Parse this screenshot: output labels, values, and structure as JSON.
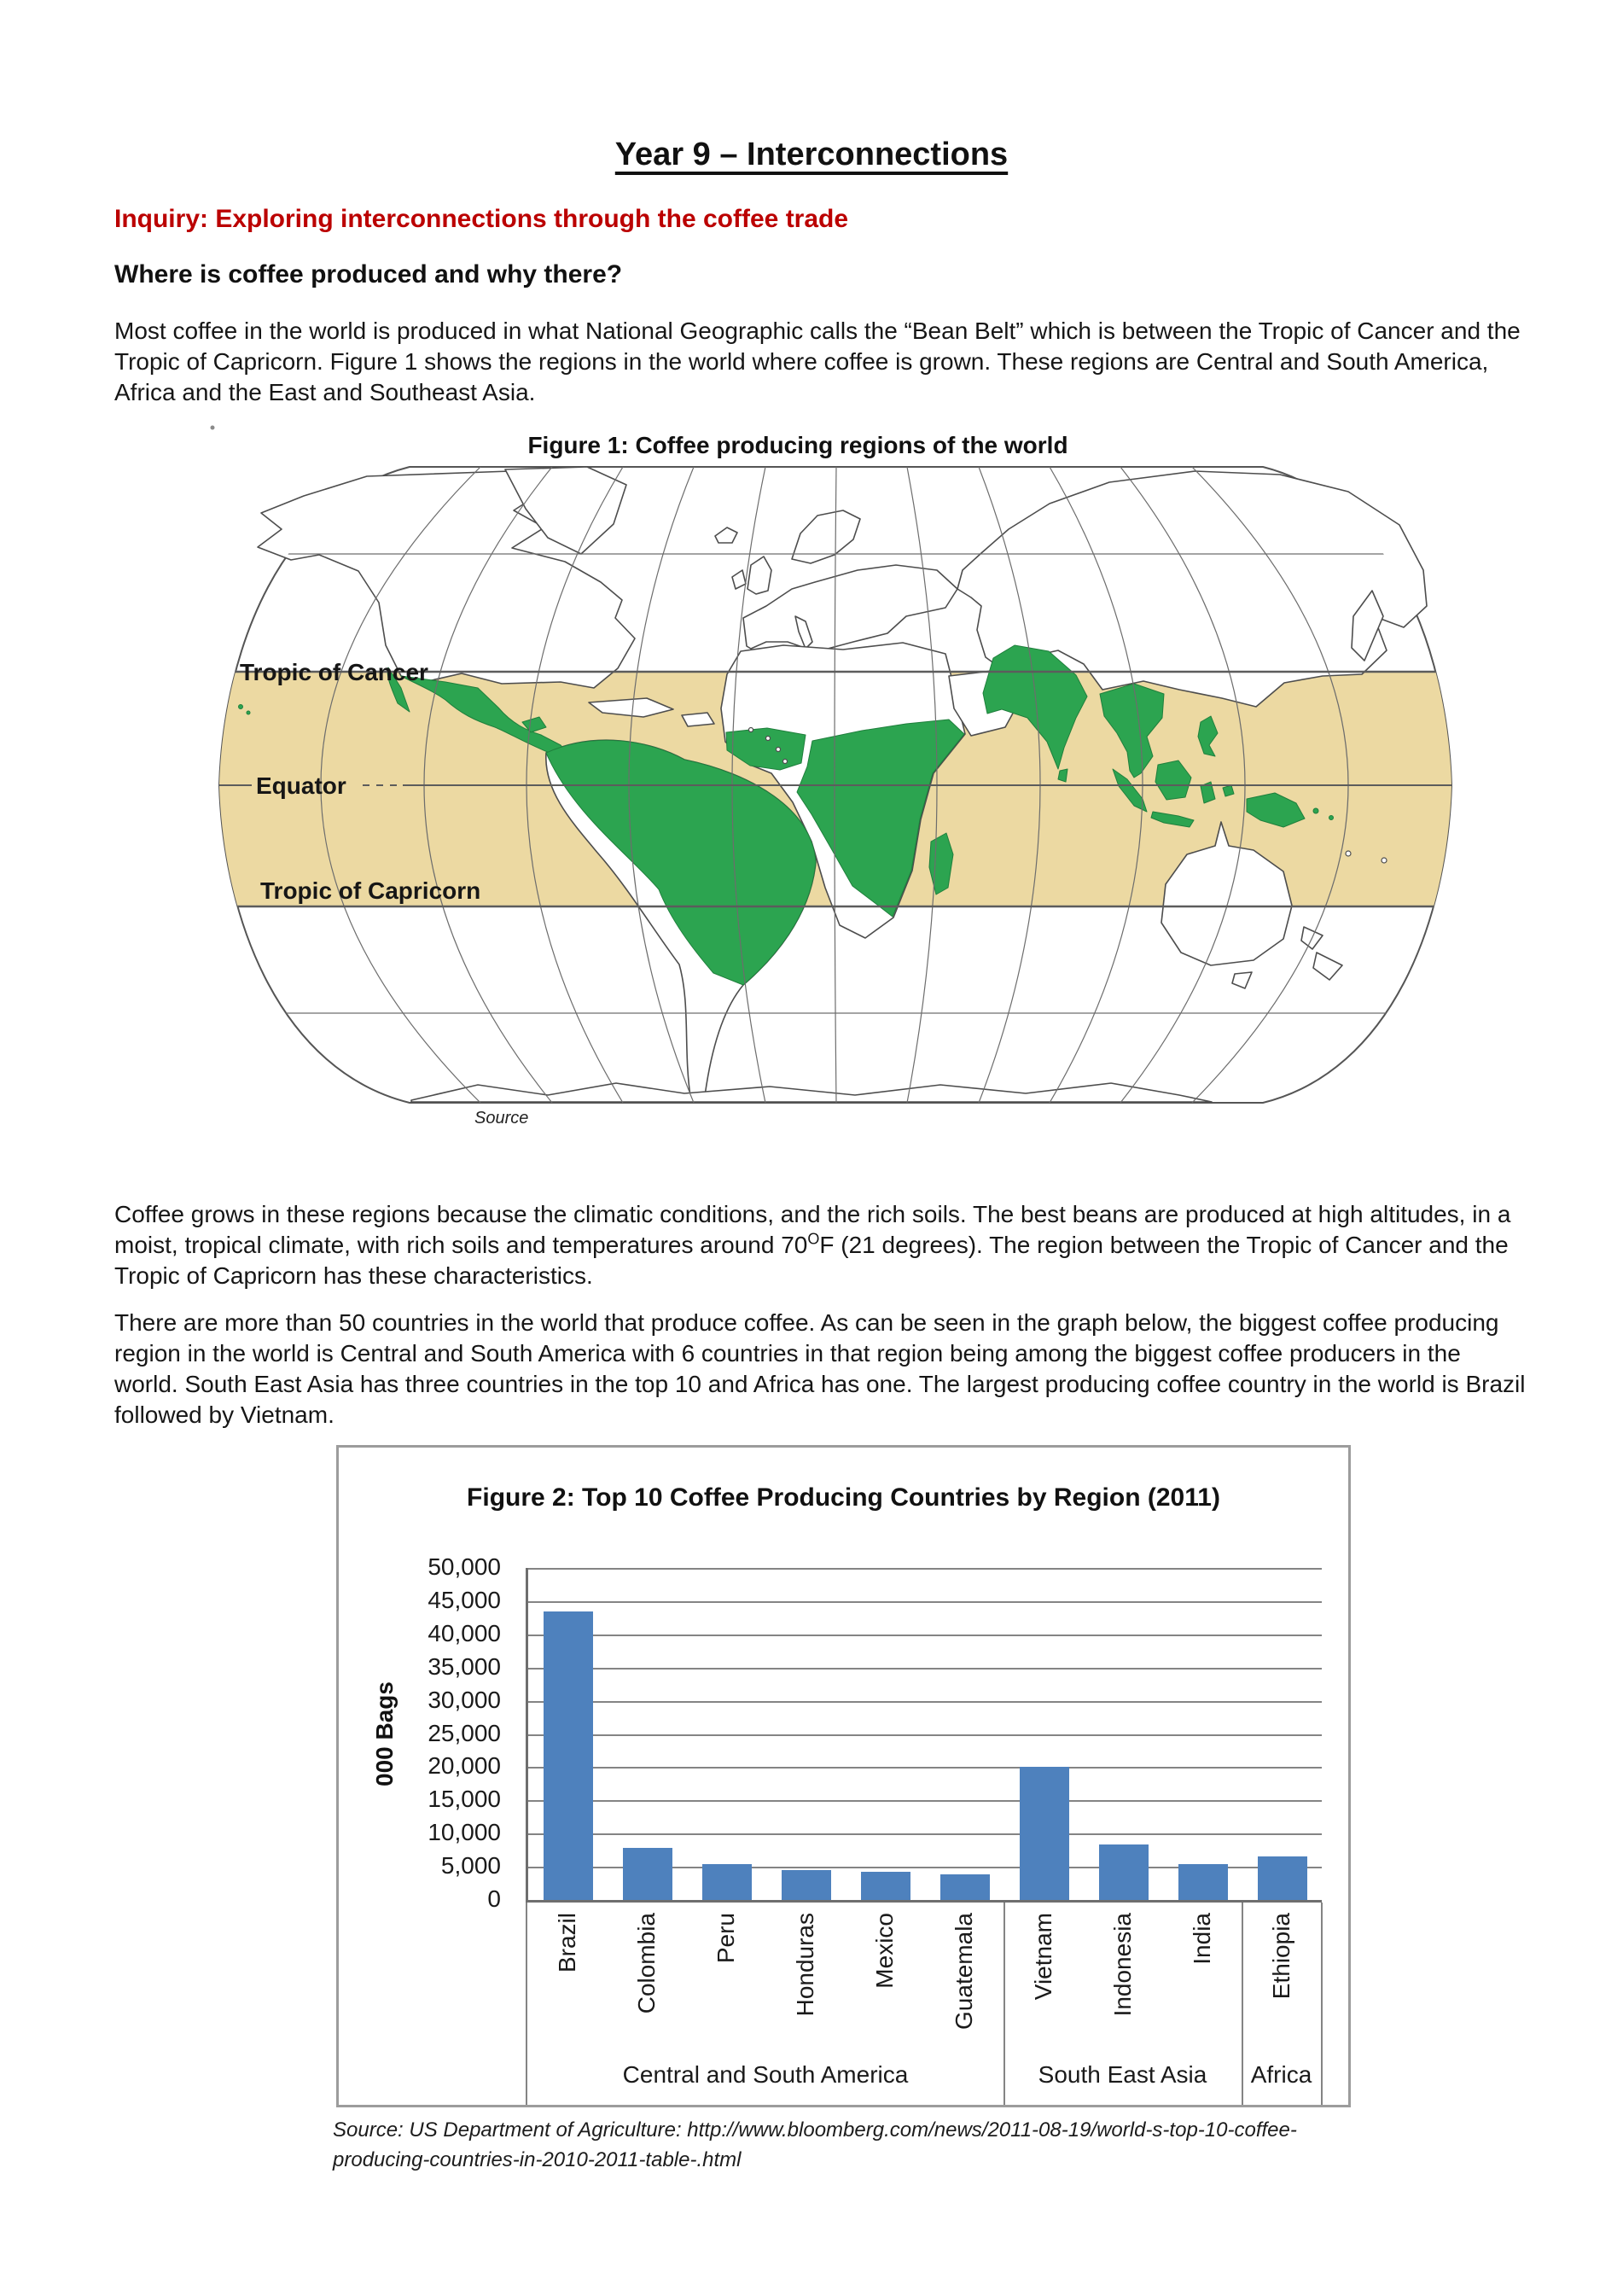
{
  "document": {
    "title": "Year 9 – Interconnections",
    "inquiry_heading": "Inquiry: Exploring interconnections through the coffee trade",
    "section_heading": "Where is coffee produced and why there?"
  },
  "paragraphs": {
    "p1": "Most coffee in the world is produced in what National Geographic calls the “Bean Belt” which is between the Tropic of Cancer and the Tropic of Capricorn. Figure 1 shows the regions in the world where coffee is grown. These regions are Central and South America, Africa and the East and Southeast Asia.",
    "p2_before_sup": "Coffee grows in these regions because the climatic conditions, and the rich soils. The best beans are produced at high altitudes, in a moist, tropical climate, with rich soils and temperatures around 70",
    "p2_sup": "O",
    "p2_after_sup": "F (21 degrees). The region between the Tropic of Cancer and the Tropic of Capricorn has these characteristics.",
    "p3": "There are more than 50 countries in the world that produce coffee. As can be seen in the graph below, the biggest coffee producing region in the world is Central and South America with 6 countries in that region being among the biggest coffee producers in the world. South East Asia has three countries in the top 10 and Africa has one. The largest producing coffee country in the world is Brazil followed by Vietnam."
  },
  "figure1": {
    "title": "Figure 1: Coffee producing regions of the world",
    "map_labels": {
      "tropic_of_cancer": "Tropic of Cancer",
      "equator": "Equator",
      "tropic_of_capricorn": "Tropic of Capricorn"
    },
    "source_label": "Source",
    "colors": {
      "tropics_band": "#ecd9a2",
      "coffee_region_green": "#2ca450"
    }
  },
  "chart_data": {
    "type": "bar",
    "title": "Figure 2: Top 10 Coffee Producing Countries by Region (2011)",
    "xlabel": "",
    "ylabel": "000 Bags",
    "ylim": [
      0,
      50000
    ],
    "ytick_step": 5000,
    "grid": true,
    "legend": false,
    "bar_color": "#4e81bd",
    "categories": [
      "Brazil",
      "Colombia",
      "Peru",
      "Honduras",
      "Mexico",
      "Guatemala",
      "Vietnam",
      "Indonesia",
      "India",
      "Ethiopia"
    ],
    "values": [
      43500,
      7800,
      5400,
      4500,
      4300,
      3900,
      20000,
      8300,
      5400,
      6500
    ],
    "region_groups": [
      {
        "label": "Central and South America",
        "from": 0,
        "to": 5
      },
      {
        "label": "South East Asia",
        "from": 6,
        "to": 8
      },
      {
        "label": "Africa",
        "from": 9,
        "to": 9
      }
    ]
  },
  "figure2_source": {
    "line1": "Source: US Department of Agriculture: http://www.bloomberg.com/news/2011-08-19/world-s-top-10-coffee-",
    "line2": "producing-countries-in-2010-2011-table-.html"
  }
}
